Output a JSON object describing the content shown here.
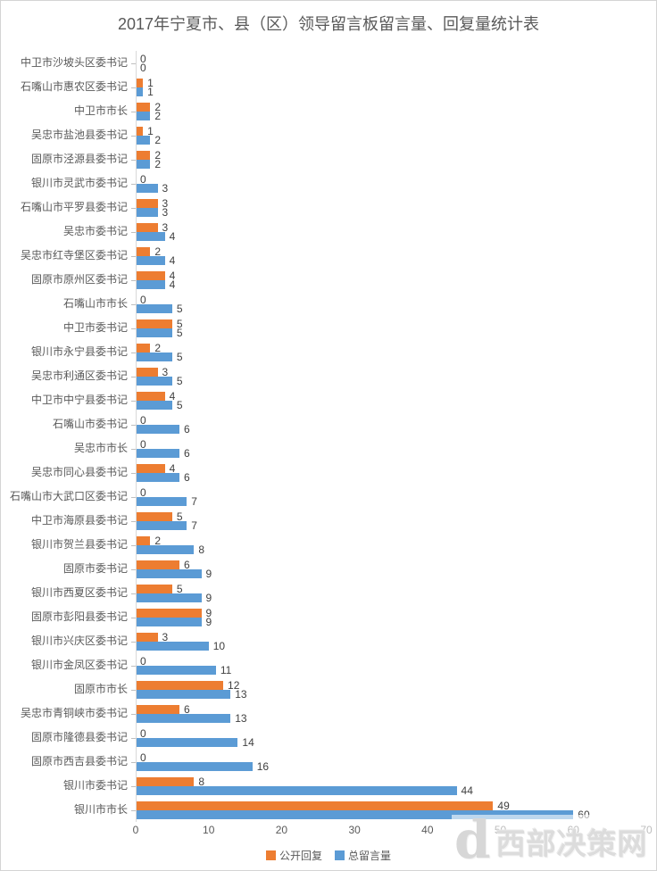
{
  "title": "2017年宁夏市、县（区）领导留言板留言量、回复量统计表",
  "chart_data": {
    "type": "bar",
    "orientation": "horizontal",
    "title": "2017年宁夏市、县（区）领导留言板留言量、回复量统计表",
    "categories": [
      "中卫市沙坡头区委书记",
      "石嘴山市惠农区委书记",
      "中卫市市长",
      "吴忠市盐池县委书记",
      "固原市泾源县委书记",
      "银川市灵武市委书记",
      "石嘴山市平罗县委书记",
      "吴忠市委书记",
      "吴忠市红寺堡区委书记",
      "固原市原州区委书记",
      "石嘴山市市长",
      "中卫市委书记",
      "银川市永宁县委书记",
      "吴忠市利通区委书记",
      "中卫市中宁县委书记",
      "石嘴山市委书记",
      "吴忠市市长",
      "吴忠市同心县委书记",
      "石嘴山市大武口区委书记",
      "中卫市海原县委书记",
      "银川市贺兰县委书记",
      "固原市委书记",
      "银川市西夏区委书记",
      "固原市彭阳县委书记",
      "银川市兴庆区委书记",
      "银川市金凤区委书记",
      "固原市市长",
      "吴忠市青铜峡市委书记",
      "固原市隆德县委书记",
      "固原市西吉县委书记",
      "银川市委书记",
      "银川市市长"
    ],
    "series": [
      {
        "name": "公开回复",
        "color": "#ED7D31",
        "values": [
          0,
          1,
          2,
          1,
          2,
          0,
          3,
          3,
          2,
          4,
          0,
          5,
          2,
          3,
          4,
          0,
          0,
          4,
          0,
          5,
          2,
          6,
          5,
          9,
          3,
          0,
          12,
          6,
          0,
          0,
          8,
          49
        ]
      },
      {
        "name": "总留言量",
        "color": "#5B9BD5",
        "values": [
          0,
          1,
          2,
          2,
          2,
          3,
          3,
          4,
          4,
          4,
          5,
          5,
          5,
          5,
          5,
          6,
          6,
          6,
          7,
          7,
          8,
          9,
          9,
          9,
          10,
          11,
          13,
          13,
          14,
          16,
          44,
          60
        ]
      }
    ],
    "xlim": [
      0,
      70
    ],
    "xticks": [
      0,
      10,
      20,
      30,
      40,
      50,
      60,
      70
    ],
    "grid": false,
    "data_labels": true,
    "legend_position": "bottom"
  },
  "watermark": {
    "logo_letter": "d",
    "text": "西部决策网"
  },
  "colors": {
    "reply": "#ED7D31",
    "total": "#5B9BD5",
    "axis": "#d9d9d9",
    "text": "#595959",
    "value_label": "#404040"
  }
}
